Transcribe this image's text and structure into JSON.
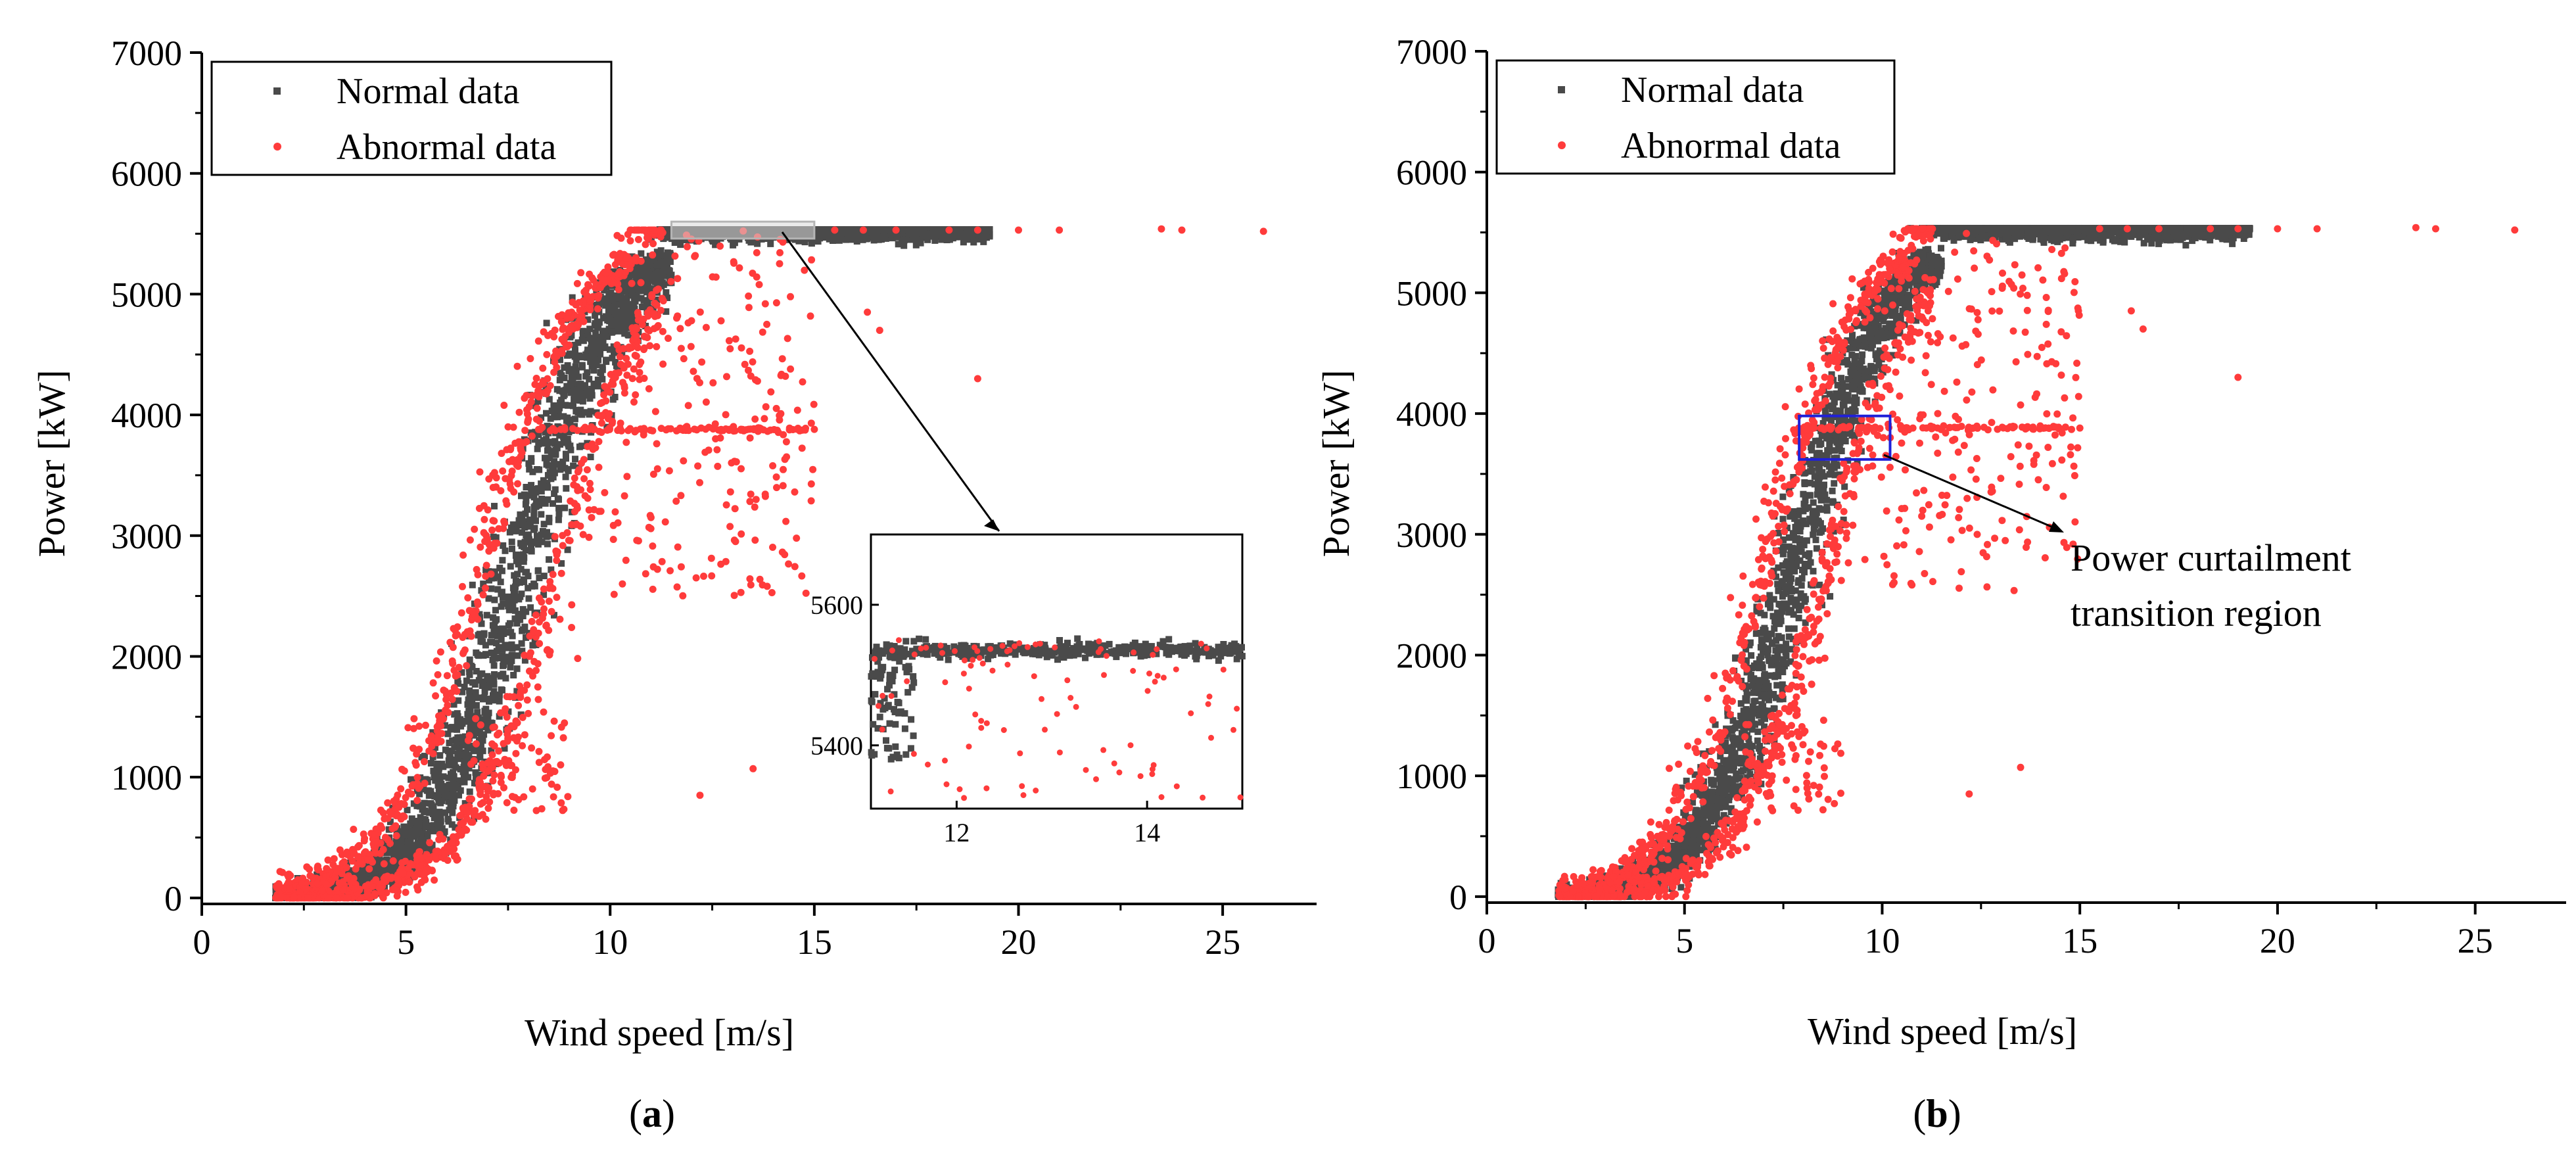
{
  "colors": {
    "normal": "#4a4a4a",
    "abnormal": "#ff3b3b",
    "axis": "#000000",
    "zoom_box": "#d0d0d0",
    "highlight_box": "#2020d8"
  },
  "panels": [
    {
      "id": "a",
      "caption_open": "(",
      "caption_letter": "a",
      "caption_close": ")"
    },
    {
      "id": "b",
      "caption_open": "(",
      "caption_letter": "b",
      "caption_close": ")",
      "annotation_line1": "Power curtailment",
      "annotation_line2": "transition region"
    }
  ],
  "chart_data": [
    {
      "type": "scatter",
      "panel": "a",
      "xlabel": "Wind speed [m/s]",
      "ylabel": "Power [kW]",
      "xlim": [
        0,
        27.3
      ],
      "ylim": [
        -50,
        7000
      ],
      "xticks": [
        0,
        5,
        10,
        15,
        20,
        25
      ],
      "yticks": [
        0,
        1000,
        2000,
        3000,
        4000,
        5000,
        6000,
        7000
      ],
      "legend": {
        "position": "top-left",
        "entries": [
          "Normal data",
          "Abnormal data"
        ]
      },
      "series": [
        {
          "name": "Normal data",
          "description": "dense band along the power curve from about 1.8 m/s to the rated plateau of about 5530 kW reached near 9-11 m/s, continuing to about 19 m/s"
        },
        {
          "name": "Abnormal data",
          "description": "points surrounding the normal band, a horizontal curtailment line at about 3880 kW from 8 to 15 m/s, scattered points above 10 m/s and isolated points near 5530 kW up to 26 m/s"
        }
      ],
      "zoom_region": {
        "x": [
          11.5,
          15
        ],
        "y": [
          5460,
          5600
        ]
      },
      "inset": {
        "xlim": [
          11.1,
          15
        ],
        "ylim": [
          5310,
          5700
        ],
        "xticks": [
          12,
          14
        ],
        "yticks": [
          5400,
          5600
        ]
      }
    },
    {
      "type": "scatter",
      "panel": "b",
      "xlabel": "Wind speed [m/s]",
      "ylabel": "Power [kW]",
      "xlim": [
        0,
        27.3
      ],
      "ylim": [
        -50,
        7000
      ],
      "xticks": [
        0,
        5,
        10,
        15,
        20,
        25
      ],
      "yticks": [
        0,
        1000,
        2000,
        3000,
        4000,
        5000,
        6000,
        7000
      ],
      "legend": {
        "position": "top-left",
        "entries": [
          "Normal data",
          "Abnormal data"
        ]
      },
      "series": [
        {
          "name": "Normal data",
          "description": "dense band along the power curve, slightly narrower than panel a"
        },
        {
          "name": "Abnormal data",
          "description": "points surrounding the normal band with curtailment line at about 3880 kW"
        }
      ],
      "highlight_region": {
        "x": [
          7.9,
          10.2
        ],
        "y": [
          3620,
          3980
        ]
      },
      "annotation": "Power curtailment transition region"
    }
  ]
}
